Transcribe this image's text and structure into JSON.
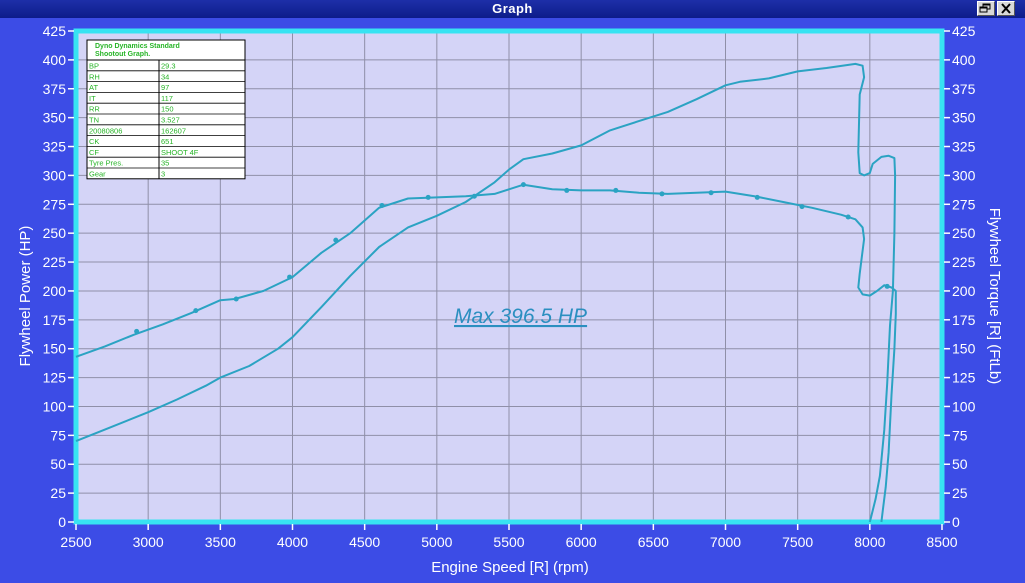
{
  "window": {
    "title": "Graph"
  },
  "chart_data": {
    "type": "line",
    "xlabel": "Engine Speed [R] (rpm)",
    "ylabel": "Flywheel Power (HP)",
    "y2label": "Flywheel Torque [R] (FtLb)",
    "xlim": [
      2500,
      8500
    ],
    "ylim": [
      0,
      425
    ],
    "y2lim": [
      0,
      425
    ],
    "xticks": [
      2500,
      3000,
      3500,
      4000,
      4500,
      5000,
      5500,
      6000,
      6500,
      7000,
      7500,
      8000,
      8500
    ],
    "yticks": [
      0,
      25,
      50,
      75,
      100,
      125,
      150,
      175,
      200,
      225,
      250,
      275,
      300,
      325,
      350,
      375,
      400,
      425
    ],
    "grid": true,
    "annotation": "Max 396.5 HP",
    "series": [
      {
        "color": "#2ba3c3",
        "points": [
          [
            2500,
            70
          ],
          [
            2700,
            80
          ],
          [
            3000,
            95
          ],
          [
            3200,
            106
          ],
          [
            3400,
            118
          ],
          [
            3500,
            125
          ],
          [
            3700,
            135
          ],
          [
            3900,
            150
          ],
          [
            4000,
            160
          ],
          [
            4200,
            186
          ],
          [
            4400,
            213
          ],
          [
            4600,
            238
          ],
          [
            4800,
            255
          ],
          [
            5000,
            265
          ],
          [
            5200,
            277
          ],
          [
            5400,
            294
          ],
          [
            5500,
            305
          ],
          [
            5600,
            314
          ],
          [
            5800,
            319
          ],
          [
            6000,
            326
          ],
          [
            6200,
            339
          ],
          [
            6400,
            347
          ],
          [
            6600,
            355
          ],
          [
            6800,
            366
          ],
          [
            7000,
            378
          ],
          [
            7100,
            381
          ],
          [
            7300,
            384
          ],
          [
            7500,
            390
          ],
          [
            7700,
            393
          ],
          [
            7900,
            396.5
          ],
          [
            7950,
            395
          ],
          [
            7960,
            385
          ],
          [
            7930,
            370
          ],
          [
            7920,
            320
          ],
          [
            7930,
            302
          ],
          [
            7960,
            300
          ],
          [
            8000,
            302
          ],
          [
            8020,
            310
          ],
          [
            8080,
            316
          ],
          [
            8130,
            317
          ],
          [
            8170,
            315
          ],
          [
            8175,
            300
          ],
          [
            8170,
            250
          ],
          [
            8160,
            200
          ],
          [
            8140,
            170
          ],
          [
            8120,
            120
          ],
          [
            8100,
            80
          ],
          [
            8070,
            40
          ],
          [
            8040,
            20
          ],
          [
            8010,
            5
          ],
          [
            8000,
            0
          ]
        ]
      },
      {
        "color": "#2ba3c3",
        "points": [
          [
            2500,
            143
          ],
          [
            2700,
            152
          ],
          [
            2900,
            162
          ],
          [
            3100,
            171
          ],
          [
            3300,
            181
          ],
          [
            3500,
            192
          ],
          [
            3600,
            193
          ],
          [
            3800,
            200
          ],
          [
            4000,
            212
          ],
          [
            4200,
            233
          ],
          [
            4400,
            250
          ],
          [
            4600,
            272
          ],
          [
            4800,
            280
          ],
          [
            5000,
            281
          ],
          [
            5200,
            282
          ],
          [
            5400,
            284
          ],
          [
            5600,
            292
          ],
          [
            5800,
            288
          ],
          [
            6000,
            287
          ],
          [
            6200,
            287
          ],
          [
            6400,
            285
          ],
          [
            6600,
            284
          ],
          [
            6800,
            285
          ],
          [
            7000,
            286
          ],
          [
            7200,
            282
          ],
          [
            7400,
            277
          ],
          [
            7600,
            272
          ],
          [
            7800,
            266
          ],
          [
            7900,
            262
          ],
          [
            7950,
            255
          ],
          [
            7960,
            245
          ],
          [
            7930,
            215
          ],
          [
            7920,
            203
          ],
          [
            7950,
            197
          ],
          [
            8000,
            196
          ],
          [
            8050,
            200
          ],
          [
            8100,
            205
          ],
          [
            8150,
            203
          ],
          [
            8180,
            200
          ],
          [
            8180,
            180
          ],
          [
            8170,
            150
          ],
          [
            8150,
            110
          ],
          [
            8130,
            60
          ],
          [
            8110,
            30
          ],
          [
            8090,
            10
          ],
          [
            8080,
            0
          ]
        ]
      }
    ],
    "markers": [
      [
        2920,
        165
      ],
      [
        3330,
        183
      ],
      [
        3610,
        193
      ],
      [
        3980,
        212
      ],
      [
        4300,
        244
      ],
      [
        4620,
        274
      ],
      [
        4940,
        281
      ],
      [
        5260,
        282
      ],
      [
        5600,
        292
      ],
      [
        5900,
        287
      ],
      [
        6240,
        287
      ],
      [
        6560,
        284
      ],
      [
        6900,
        285
      ],
      [
        7220,
        281
      ],
      [
        7530,
        273
      ],
      [
        7850,
        264
      ],
      [
        8120,
        204
      ]
    ],
    "info_table": {
      "title": "Dyno Dynamics Standard Shootout Graph.",
      "rows": [
        [
          "BP",
          "29.3"
        ],
        [
          "RH",
          "34"
        ],
        [
          "AT",
          "97"
        ],
        [
          "IT",
          "117"
        ],
        [
          "RR",
          "150"
        ],
        [
          "TN",
          "3.527"
        ],
        [
          "20080806",
          "162607"
        ],
        [
          "CK",
          "651"
        ],
        [
          "CF",
          "SHOOT 4F"
        ],
        [
          "Tyre Pres.",
          "35"
        ],
        [
          "Gear",
          "3"
        ]
      ]
    }
  }
}
